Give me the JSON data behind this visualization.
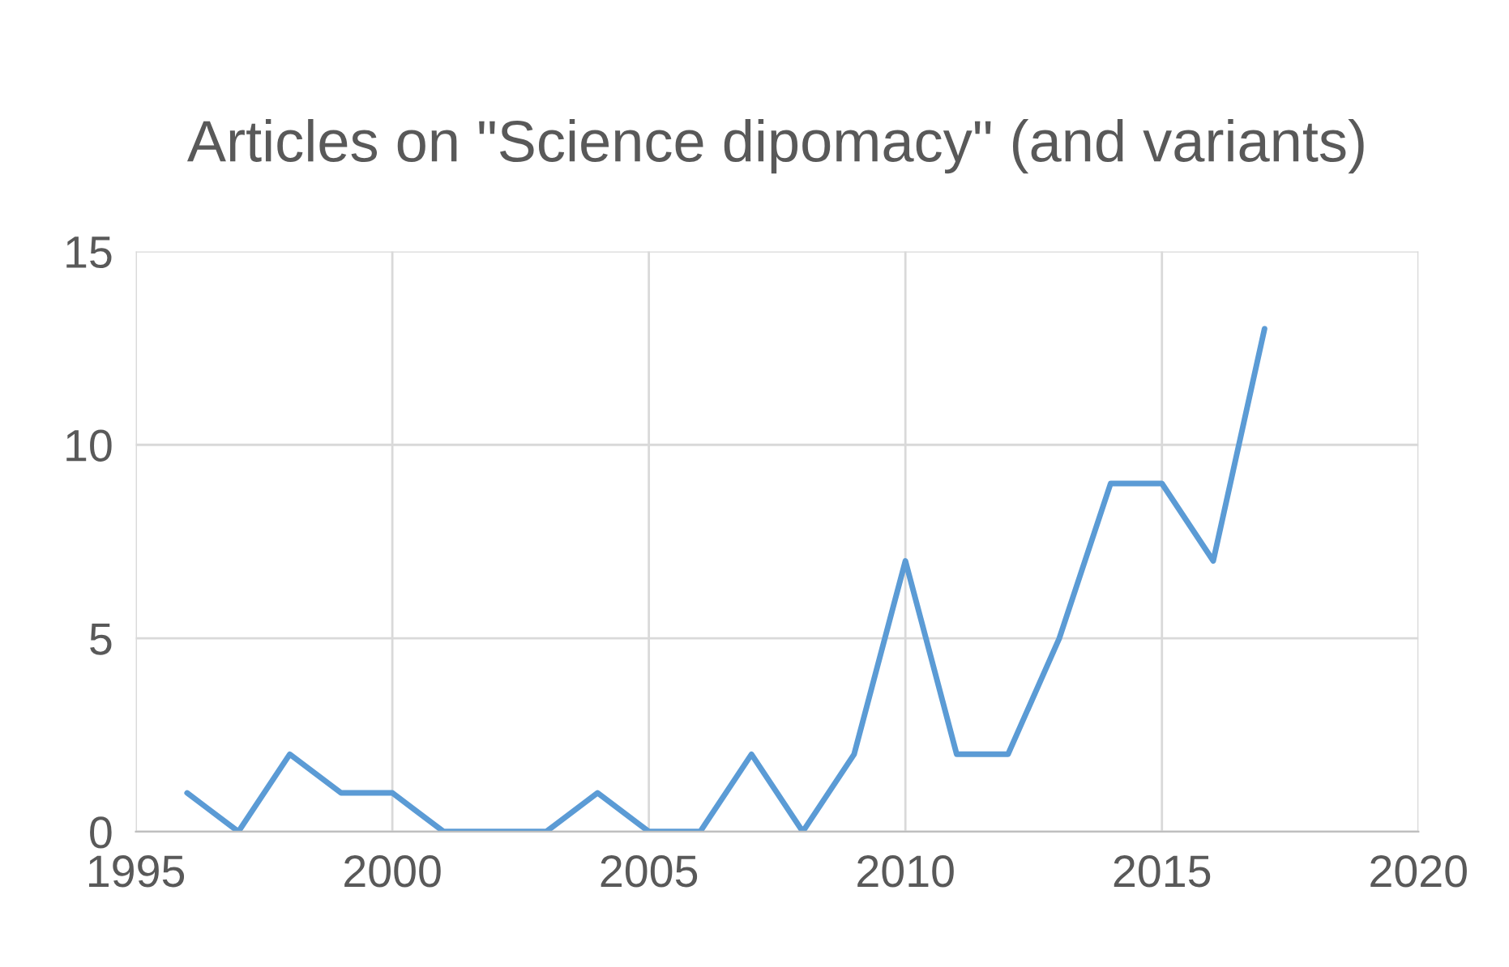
{
  "chart_data": {
    "type": "line",
    "title": "Articles on \"Science dipomacy\" (and variants)",
    "x": [
      1996,
      1997,
      1998,
      1999,
      2000,
      2001,
      2002,
      2003,
      2004,
      2005,
      2006,
      2007,
      2008,
      2009,
      2010,
      2011,
      2012,
      2013,
      2014,
      2015,
      2016,
      2017
    ],
    "series": [
      {
        "color": "#5b9bd5",
        "values": [
          1,
          0,
          2,
          1,
          1,
          0,
          0,
          0,
          1,
          0,
          0,
          2,
          0,
          2,
          7,
          2,
          2,
          5,
          9,
          9,
          7,
          13
        ]
      }
    ],
    "xlim": [
      1995,
      2020
    ],
    "xticks": [
      1995,
      2000,
      2005,
      2010,
      2015,
      2020
    ],
    "ylim": [
      0,
      15
    ],
    "yticks": [
      0,
      5,
      10,
      15
    ],
    "grid": true
  }
}
